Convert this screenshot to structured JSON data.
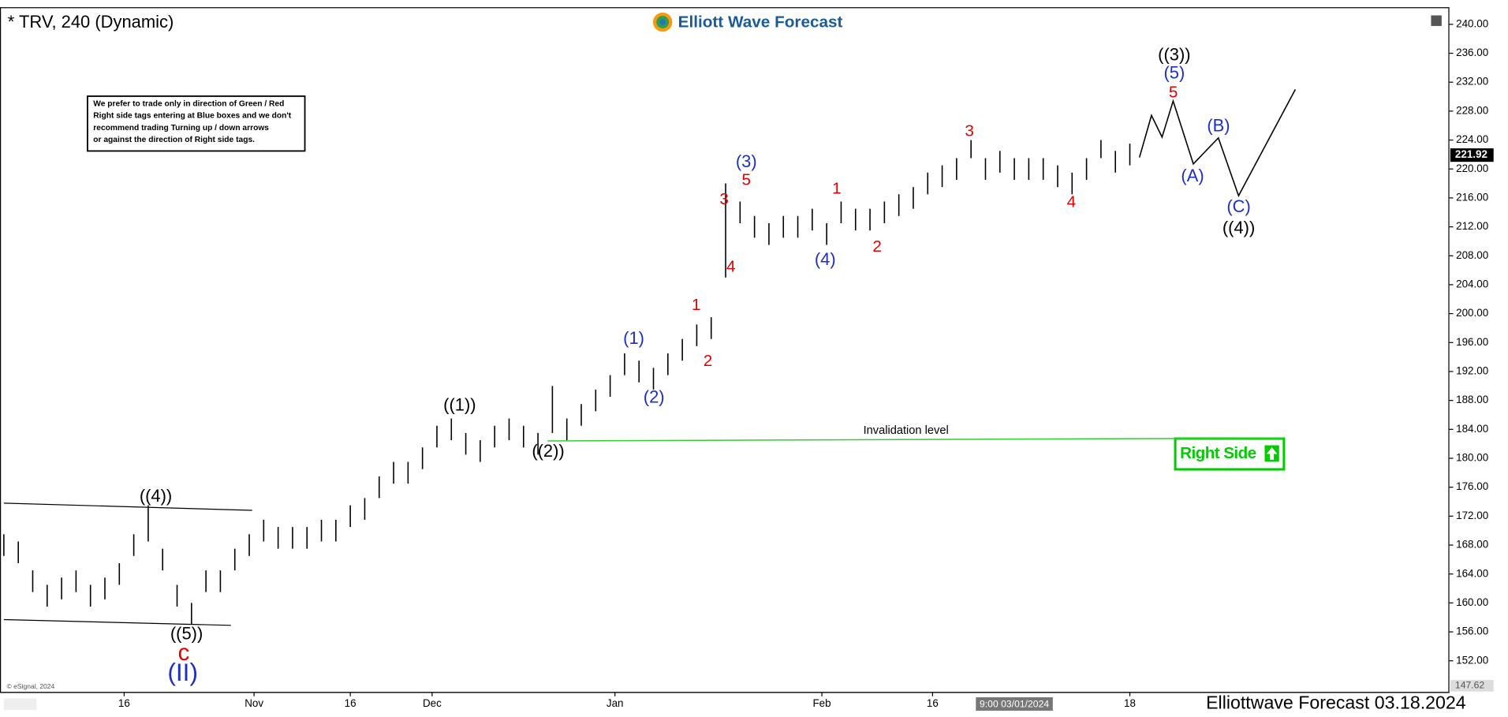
{
  "chart_data": {
    "type": "ohlc",
    "title": "* TRV, 240 (Dynamic)",
    "logo": "Elliott Wave Forecast",
    "footer": "Elliottwave Forecast 03.18.2024",
    "copyright": "© eSignal, 2024",
    "note": [
      "We prefer to trade only in direction of Green / Red",
      "Right side tags entering at Blue boxes and we don't",
      "recommend trading Turning up / down arrows",
      "or against the direction of Right side tags."
    ],
    "right_side": "Right Side",
    "last_price": 221.92,
    "color": "#000000",
    "ylim": [
      147.62,
      242.3
    ],
    "yticks": [
      {
        "value": 152,
        "label": "152.00"
      },
      {
        "value": 156,
        "label": "156.00"
      },
      {
        "value": 160,
        "label": "160.00"
      },
      {
        "value": 164,
        "label": "164.00"
      },
      {
        "value": 168,
        "label": "168.00"
      },
      {
        "value": 172,
        "label": "172.00"
      },
      {
        "value": 176,
        "label": "176.00"
      },
      {
        "value": 180,
        "label": "180.00"
      },
      {
        "value": 184,
        "label": "184.00"
      },
      {
        "value": 188,
        "label": "188.00"
      },
      {
        "value": 192,
        "label": "192.00"
      },
      {
        "value": 196,
        "label": "196.00"
      },
      {
        "value": 200,
        "label": "200.00"
      },
      {
        "value": 204,
        "label": "204.00"
      },
      {
        "value": 208,
        "label": "208.00"
      },
      {
        "value": 212,
        "label": "212.00"
      },
      {
        "value": 216,
        "label": "216.00"
      },
      {
        "value": 220,
        "label": "220.00"
      },
      {
        "value": 224,
        "label": "224.00"
      },
      {
        "value": 228,
        "label": "228.00"
      },
      {
        "value": 232,
        "label": "232.00"
      },
      {
        "value": 236,
        "label": "236.00"
      },
      {
        "value": 240,
        "label": "240.00"
      }
    ],
    "xlim": [
      0,
      300
    ],
    "xticks": [
      {
        "value": 25,
        "label": "16"
      },
      {
        "value": 52,
        "label": "Nov"
      },
      {
        "value": 72,
        "label": "16"
      },
      {
        "value": 89,
        "label": "Dec"
      },
      {
        "value": 127,
        "label": "Jan"
      },
      {
        "value": 170,
        "label": "Feb"
      },
      {
        "value": 193,
        "label": "16"
      },
      {
        "value": 234,
        "label": "18"
      }
    ],
    "crosshair": {
      "x": 210,
      "label": "9:00 03/01/2024"
    },
    "x": [
      0,
      3,
      6,
      9,
      12,
      15,
      18,
      21,
      24,
      27,
      30,
      33,
      36,
      39,
      42,
      45,
      48,
      51,
      54,
      57,
      60,
      63,
      66,
      69,
      72,
      75,
      78,
      81,
      84,
      87,
      90,
      93,
      96,
      99,
      102,
      105,
      108,
      111,
      114,
      117,
      120,
      123,
      126,
      129,
      132,
      135,
      138,
      141,
      144,
      147,
      150,
      153,
      156,
      159,
      162,
      165,
      168,
      171,
      174,
      177,
      180,
      183,
      186,
      189,
      192,
      195,
      198,
      201,
      204,
      207,
      210,
      213,
      216,
      219,
      222,
      225,
      228,
      231,
      234
    ],
    "high": [
      169.5,
      168.5,
      164.5,
      162.5,
      163.5,
      164.5,
      162.5,
      163.5,
      165.5,
      169.5,
      173.5,
      167.5,
      162.5,
      160,
      164.5,
      164.5,
      167.5,
      169.5,
      171.5,
      170.5,
      170.5,
      170.5,
      171.5,
      171.5,
      173.5,
      174.5,
      177.5,
      179.5,
      179.5,
      181.5,
      184.5,
      185.5,
      183.5,
      182.5,
      184.5,
      185.5,
      184.5,
      183.5,
      190,
      185.5,
      187.5,
      189.5,
      191.5,
      194.5,
      193.5,
      192.5,
      194.5,
      196.5,
      198.5,
      199.5,
      218,
      215.5,
      213.5,
      212.5,
      213.5,
      213.5,
      214.5,
      212.5,
      215.5,
      214.5,
      214.5,
      215.5,
      216.5,
      217.5,
      219.5,
      220.5,
      221.5,
      224,
      221.5,
      222.5,
      221.5,
      221.5,
      221.5,
      220.5,
      219.5,
      221.5,
      224,
      222.5,
      223.5
    ],
    "low": [
      166.5,
      165.5,
      161.5,
      159.5,
      160.5,
      161.5,
      159.5,
      160.5,
      162.5,
      166.5,
      168.5,
      164.5,
      159.5,
      157,
      161.5,
      161.5,
      164.5,
      166.5,
      168.5,
      167.5,
      167.5,
      167.5,
      168.5,
      168.5,
      170.5,
      171.5,
      174.5,
      176.5,
      176.5,
      178.5,
      181.5,
      182.5,
      180.5,
      179.5,
      181.5,
      182.5,
      181.5,
      180.5,
      183.5,
      182.5,
      184.5,
      186.5,
      188.5,
      191.5,
      190.5,
      189.5,
      191.5,
      193.5,
      195.5,
      196.5,
      205,
      212.5,
      210.5,
      209.5,
      210.5,
      210.5,
      211.5,
      209.5,
      212.5,
      211.5,
      211.5,
      212.5,
      213.5,
      214.5,
      216.5,
      217.5,
      218.5,
      221.5,
      218.5,
      219.5,
      218.5,
      218.5,
      218.5,
      217.5,
      216.5,
      218.5,
      221.5,
      219.5,
      220.5
    ],
    "projection": {
      "color": "#000000",
      "x": [
        236,
        238.5,
        240.7,
        243,
        247.2,
        252.4,
        256.6,
        268.4
      ],
      "y": [
        221.6,
        227.4,
        224.4,
        229.4,
        220.7,
        224.3,
        216.3,
        231.0
      ]
    },
    "invalidation": {
      "label": "Invalidation level",
      "color": "#33cc33",
      "x": [
        113,
        266
      ],
      "y": [
        182.4,
        182.8
      ]
    },
    "channel": [
      {
        "x": [
          0,
          51.6
        ],
        "y": [
          173.8,
          172.8
        ]
      },
      {
        "x": [
          0,
          47.2
        ],
        "y": [
          157.7,
          156.9
        ]
      }
    ],
    "wave_labels": [
      {
        "text": "((4))",
        "color": "#000000"
      },
      {
        "text": "((5))",
        "color": "#000000"
      },
      {
        "text": "c",
        "color": "#e00000"
      },
      {
        "text": "(II)",
        "color": "#1f2fbf"
      },
      {
        "text": "((1))",
        "color": "#000000"
      },
      {
        "text": "((2))",
        "color": "#000000"
      },
      {
        "text": "(1)",
        "color": "#1f2fbf"
      },
      {
        "text": "(2)",
        "color": "#1f2fbf"
      },
      {
        "text": "1",
        "color": "#e00000"
      },
      {
        "text": "2",
        "color": "#e00000"
      },
      {
        "text": "3",
        "color": "#e00000"
      },
      {
        "text": "4",
        "color": "#e00000"
      },
      {
        "text": "5",
        "color": "#e00000"
      },
      {
        "text": "(3)",
        "color": "#1f2fbf"
      },
      {
        "text": "(4)",
        "color": "#1f2fbf"
      },
      {
        "text": "1",
        "color": "#e00000"
      },
      {
        "text": "2",
        "color": "#e00000"
      },
      {
        "text": "3",
        "color": "#e00000"
      },
      {
        "text": "4",
        "color": "#e00000"
      },
      {
        "text": "((3))",
        "color": "#000000"
      },
      {
        "text": "(5)",
        "color": "#1f2fbf"
      },
      {
        "text": "5",
        "color": "#e00000"
      },
      {
        "text": "(A)",
        "color": "#1f2fbf"
      },
      {
        "text": "(B)",
        "color": "#1f2fbf"
      },
      {
        "text": "(C)",
        "color": "#1f2fbf"
      },
      {
        "text": "((4))",
        "color": "#000000"
      }
    ]
  }
}
